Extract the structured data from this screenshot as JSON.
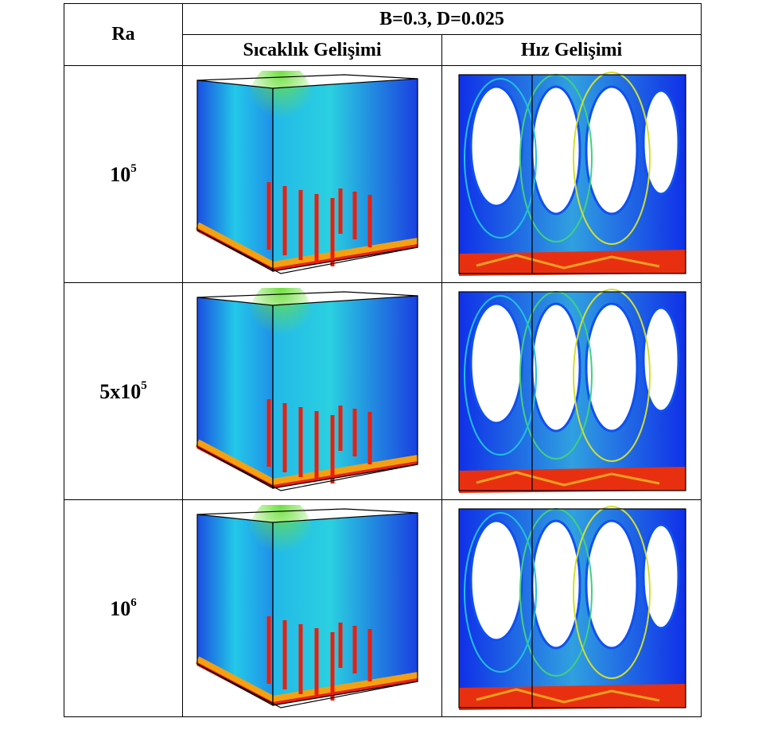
{
  "header": {
    "ra": "Ra",
    "group": "B=0.3, D=0.025",
    "col1": "Sıcaklık Gelişimi",
    "col2": "Hız Gelişimi"
  },
  "rows": [
    {
      "ra": {
        "base": "10",
        "exp": "5"
      }
    },
    {
      "ra": {
        "base": "5x10",
        "exp": "5"
      }
    },
    {
      "ra": {
        "base": "10",
        "exp": "6"
      }
    }
  ]
}
